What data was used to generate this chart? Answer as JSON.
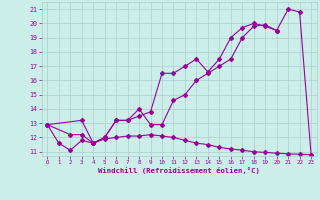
{
  "xlabel": "Windchill (Refroidissement éolien,°C)",
  "background_color": "#cceee8",
  "grid_color": "#aacccc",
  "line_color": "#990099",
  "xlim": [
    -0.5,
    23.5
  ],
  "ylim": [
    10.7,
    21.5
  ],
  "xticks": [
    0,
    1,
    2,
    3,
    4,
    5,
    6,
    7,
    8,
    9,
    10,
    11,
    12,
    13,
    14,
    15,
    16,
    17,
    18,
    19,
    20,
    21,
    22,
    23
  ],
  "yticks": [
    11,
    12,
    13,
    14,
    15,
    16,
    17,
    18,
    19,
    20,
    21
  ],
  "line1_x": [
    0,
    1,
    2,
    3,
    4,
    5,
    6,
    7,
    8,
    9,
    10,
    11,
    12,
    13,
    14,
    15,
    16,
    17,
    18,
    19,
    20,
    21,
    22,
    23
  ],
  "line1_y": [
    12.9,
    11.6,
    11.1,
    11.8,
    11.6,
    11.9,
    12.0,
    12.1,
    12.1,
    12.2,
    12.1,
    12.0,
    11.8,
    11.6,
    11.5,
    11.3,
    11.2,
    11.1,
    11.0,
    10.95,
    10.9,
    10.85,
    10.82,
    10.8
  ],
  "line2_x": [
    0,
    2,
    3,
    4,
    5,
    6,
    7,
    8,
    9,
    10,
    11,
    12,
    13,
    14,
    15,
    16,
    17,
    18,
    19,
    20,
    21,
    22,
    23
  ],
  "line2_y": [
    12.9,
    12.2,
    12.2,
    11.6,
    12.0,
    13.2,
    13.2,
    13.5,
    13.8,
    16.5,
    16.5,
    17.0,
    17.5,
    16.6,
    17.5,
    19.0,
    19.7,
    20.0,
    19.8,
    19.5,
    21.0,
    20.8,
    10.8
  ],
  "line3_x": [
    0,
    3,
    4,
    5,
    6,
    7,
    8,
    9,
    10,
    11,
    12,
    13,
    14,
    15,
    16,
    17,
    18,
    19,
    20
  ],
  "line3_y": [
    12.9,
    13.2,
    11.6,
    12.0,
    13.2,
    13.2,
    14.0,
    12.9,
    12.9,
    14.6,
    15.0,
    16.0,
    16.5,
    17.0,
    17.5,
    19.0,
    19.8,
    19.9,
    19.5
  ],
  "marker": "D",
  "markersize": 2,
  "linewidth": 0.8
}
